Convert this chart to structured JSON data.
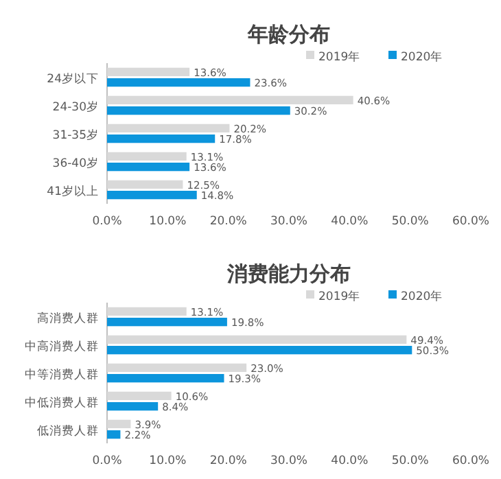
{
  "chart_data": [
    {
      "type": "bar",
      "orientation": "horizontal",
      "title": "年龄分布",
      "categories": [
        "24岁以下",
        "24-30岁",
        "31-35岁",
        "36-40岁",
        "41岁以上"
      ],
      "series": [
        {
          "name": "2019年",
          "color": "#d9d9d9",
          "values": [
            13.6,
            40.6,
            20.2,
            13.1,
            12.5
          ],
          "value_labels": [
            "13.6%",
            "40.6%",
            "20.2%",
            "13.1%",
            "12.5%"
          ]
        },
        {
          "name": "2020年",
          "color": "#0c95dc",
          "values": [
            23.6,
            30.2,
            17.8,
            13.6,
            14.8
          ],
          "value_labels": [
            "23.6%",
            "30.2%",
            "17.8%",
            "13.6%",
            "14.8%"
          ]
        }
      ],
      "xlim": [
        0,
        60
      ],
      "xticks": [
        {
          "value": 0,
          "label": "0.0%"
        },
        {
          "value": 10,
          "label": "10.0%"
        },
        {
          "value": 20,
          "label": "20.0%"
        },
        {
          "value": 30,
          "label": "30.0%"
        },
        {
          "value": 40,
          "label": "40.0%"
        },
        {
          "value": 50,
          "label": "50.0%"
        },
        {
          "value": 60,
          "label": "60.0%"
        }
      ],
      "legend": "top right"
    },
    {
      "type": "bar",
      "orientation": "horizontal",
      "title": "消费能力分布",
      "categories": [
        "高消费人群",
        "中高消费人群",
        "中等消费人群",
        "中低消费人群",
        "低消费人群"
      ],
      "series": [
        {
          "name": "2019年",
          "color": "#d9d9d9",
          "values": [
            13.1,
            49.4,
            23.0,
            10.6,
            3.9
          ],
          "value_labels": [
            "13.1%",
            "49.4%",
            "23.0%",
            "10.6%",
            "3.9%"
          ]
        },
        {
          "name": "2020年",
          "color": "#0c95dc",
          "values": [
            19.8,
            50.3,
            19.3,
            8.4,
            2.2
          ],
          "value_labels": [
            "19.8%",
            "50.3%",
            "19.3%",
            "8.4%",
            "2.2%"
          ]
        }
      ],
      "xlim": [
        0,
        60
      ],
      "xticks": [
        {
          "value": 0,
          "label": "0.0%"
        },
        {
          "value": 10,
          "label": "10.0%"
        },
        {
          "value": 20,
          "label": "20.0%"
        },
        {
          "value": 30,
          "label": "30.0%"
        },
        {
          "value": 40,
          "label": "40.0%"
        },
        {
          "value": 50,
          "label": "50.0%"
        },
        {
          "value": 60,
          "label": "60.0%"
        }
      ],
      "legend": "top right"
    }
  ]
}
